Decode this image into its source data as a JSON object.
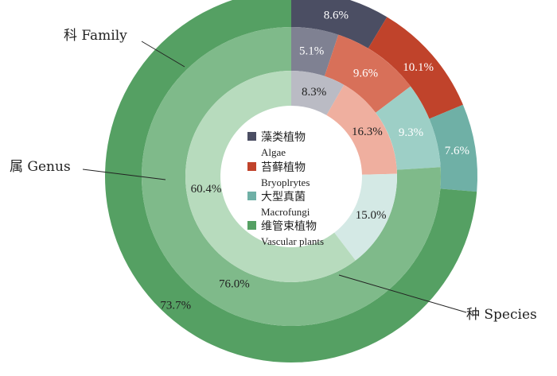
{
  "chart_data": {
    "type": "pie",
    "subtype": "nested-donut",
    "categories": [
      "藻类植物 Algae",
      "苔藓植物 Bryoplrytes",
      "大型真菌 Macrofungi",
      "维管束植物 Vascular plants"
    ],
    "legend": [
      {
        "cn": "藻类植物",
        "en": "Algae"
      },
      {
        "cn": "苔藓植物",
        "en": "Bryoplrytes"
      },
      {
        "cn": "大型真菌",
        "en": "Macrofungi"
      },
      {
        "cn": "维管束植物",
        "en": "Vascular plants"
      }
    ],
    "legend_position": "center",
    "rings": [
      {
        "name": "科 Family",
        "values": [
          8.6,
          10.1,
          7.6,
          73.7
        ],
        "labels": [
          "8.6%",
          "10.1%",
          "7.6%",
          "73.7%"
        ],
        "colors": [
          "#4b4e63",
          "#c0432b",
          "#6fb0a6",
          "#55a063"
        ]
      },
      {
        "name": "属 Genus",
        "values": [
          5.1,
          9.6,
          9.3,
          76.0
        ],
        "labels": [
          "5.1%",
          "9.6%",
          "9.3%",
          "76.0%"
        ],
        "colors": [
          "#7f8192",
          "#d87059",
          "#9dcfc6",
          "#7fba8a"
        ]
      },
      {
        "name": "种 Species",
        "values": [
          8.3,
          16.3,
          15.0,
          60.4
        ],
        "labels": [
          "8.3%",
          "16.3%",
          "15.0%",
          "60.4%"
        ],
        "colors": [
          "#babbc4",
          "#efaf9f",
          "#d4e9e5",
          "#b7dbbd"
        ]
      }
    ],
    "legend_colors": [
      "#4b4e63",
      "#c0432b",
      "#6fb0a6",
      "#55a063"
    ]
  }
}
